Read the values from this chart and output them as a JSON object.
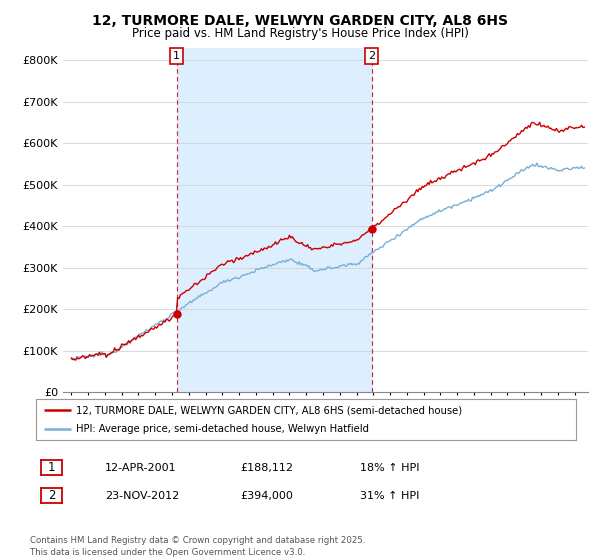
{
  "title": "12, TURMORE DALE, WELWYN GARDEN CITY, AL8 6HS",
  "subtitle": "Price paid vs. HM Land Registry's House Price Index (HPI)",
  "legend_label_red": "12, TURMORE DALE, WELWYN GARDEN CITY, AL8 6HS (semi-detached house)",
  "legend_label_blue": "HPI: Average price, semi-detached house, Welwyn Hatfield",
  "annotation1_label": "1",
  "annotation1_date": "12-APR-2001",
  "annotation1_price": "£188,112",
  "annotation1_pct": "18% ↑ HPI",
  "annotation2_label": "2",
  "annotation2_date": "23-NOV-2012",
  "annotation2_price": "£394,000",
  "annotation2_pct": "31% ↑ HPI",
  "footnote": "Contains HM Land Registry data © Crown copyright and database right 2025.\nThis data is licensed under the Open Government Licence v3.0.",
  "red_color": "#cc0000",
  "blue_color": "#7bafd4",
  "shade_color": "#ddeeff",
  "background_color": "#ffffff",
  "ylim": [
    0,
    830000
  ],
  "yticks": [
    0,
    100000,
    200000,
    300000,
    400000,
    500000,
    600000,
    700000,
    800000
  ],
  "purchase1_year": 2001.28,
  "purchase1_price": 188112,
  "purchase2_year": 2012.9,
  "purchase2_price": 394000,
  "vline1_year": 2001.28,
  "vline2_year": 2012.9,
  "xmin": 1995,
  "xmax": 2025
}
